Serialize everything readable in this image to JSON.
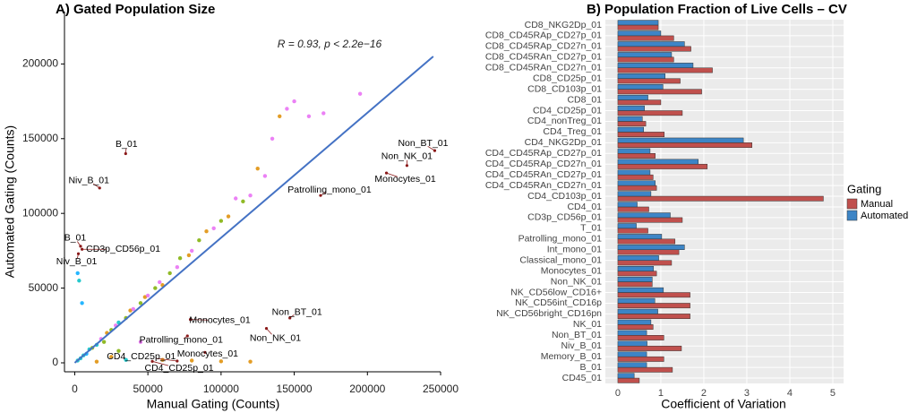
{
  "chart_data": [
    {
      "type": "scatter",
      "title": "A) Gated Population Size",
      "xlabel": "Manual Gating (Counts)",
      "ylabel": "Automated Gating (Counts)",
      "annotation": "R = 0.93, p < 2.2e−16",
      "xlim": [
        -7000,
        250000
      ],
      "ylim": [
        -6000,
        235000
      ],
      "xticks": [
        0,
        50000,
        100000,
        150000,
        200000,
        250000
      ],
      "yticks": [
        0,
        50000,
        100000,
        150000,
        200000
      ],
      "x": [
        2000,
        4000,
        6000,
        8000,
        10000,
        12000,
        15000,
        18000,
        20000,
        22000,
        25000,
        28000,
        30000,
        35000,
        38000,
        40000,
        45000,
        48000,
        50000,
        55000,
        58000,
        60000,
        65000,
        70000,
        72000,
        78000,
        80000,
        85000,
        90000,
        95000,
        100000,
        105000,
        110000,
        115000,
        120000,
        125000,
        130000,
        135000,
        140000,
        145000,
        150000,
        160000,
        170000,
        195000,
        60000,
        80000,
        100000,
        120000,
        30000,
        5000,
        3000,
        2000,
        45000,
        25000,
        15000,
        35000
      ],
      "y": [
        1500,
        3000,
        5000,
        6000,
        9000,
        10000,
        12000,
        16000,
        14000,
        20000,
        22000,
        25000,
        27000,
        30000,
        35000,
        36000,
        40000,
        44000,
        45000,
        50000,
        54000,
        52000,
        60000,
        64000,
        70000,
        72000,
        75000,
        82000,
        88000,
        90000,
        95000,
        98000,
        110000,
        108000,
        112000,
        130000,
        125000,
        150000,
        165000,
        170000,
        175000,
        165000,
        167000,
        180000,
        2000,
        1500,
        1000,
        800,
        8000,
        40000,
        55000,
        60000,
        14000,
        4000,
        800,
        2000
      ],
      "colors": [
        "#00bfc4",
        "#00bfc4",
        "#00bfc4",
        "#00a9ff",
        "#00bfc4",
        "#7cae00",
        "#00bfc4",
        "#e76bf3",
        "#7cae00",
        "#de8c00",
        "#7cae00",
        "#e76bf3",
        "#00bfc4",
        "#7cae00",
        "#de8c00",
        "#e76bf3",
        "#7cae00",
        "#de8c00",
        "#e76bf3",
        "#7cae00",
        "#e76bf3",
        "#de8c00",
        "#7cae00",
        "#e76bf3",
        "#7cae00",
        "#de8c00",
        "#e76bf3",
        "#7cae00",
        "#de8c00",
        "#e76bf3",
        "#7cae00",
        "#de8c00",
        "#e76bf3",
        "#7cae00",
        "#e76bf3",
        "#de8c00",
        "#e76bf3",
        "#e76bf3",
        "#de8c00",
        "#e76bf3",
        "#e76bf3",
        "#e76bf3",
        "#e76bf3",
        "#e76bf3",
        "#de8c00",
        "#de8c00",
        "#de8c00",
        "#de8c00",
        "#7cae00",
        "#00a9ff",
        "#00bfc4",
        "#00a9ff",
        "#e76bf3",
        "#de8c00",
        "#de8c00",
        "#00bfc4"
      ],
      "fit": {
        "x": [
          0,
          245000
        ],
        "y": [
          0,
          205000
        ],
        "color": "#4472c4"
      },
      "labels": [
        {
          "text": "B_01",
          "x": 34800,
          "y": 140000
        },
        {
          "text": "Non_BT_01",
          "x": 246000,
          "y": 142000
        },
        {
          "text": "Non_NK_01",
          "x": 227000,
          "y": 132000
        },
        {
          "text": "Monocytes_01",
          "x": 213000,
          "y": 127000
        },
        {
          "text": "Patrolling_mono_01",
          "x": 168000,
          "y": 112000
        },
        {
          "text": "Niv_B_01",
          "x": 17000,
          "y": 117000
        },
        {
          "text": "B_01",
          "x": 4000,
          "y": 78000
        },
        {
          "text": "CD3p_CD56p_01",
          "x": 5000,
          "y": 76000
        },
        {
          "text": "Niv_B_01",
          "x": 2500,
          "y": 73000
        },
        {
          "text": "Non_BT_01",
          "x": 147000,
          "y": 30000
        },
        {
          "text": "Non_NK_01",
          "x": 131000,
          "y": 23000
        },
        {
          "text": "Monocytes_01",
          "x": 79000,
          "y": 29000
        },
        {
          "text": "Patrolling_mono_01",
          "x": 77000,
          "y": 18000
        },
        {
          "text": "Monocytes_01",
          "x": 89000,
          "y": 7000
        },
        {
          "text": "CD4_CD25p_01",
          "x": 70000,
          "y": 1200
        },
        {
          "text": "CD4_CD25p_01",
          "x": 53000,
          "y": 1000
        }
      ]
    },
    {
      "type": "barh",
      "title": "B) Population Fraction of Live Cells – CV",
      "xlabel": "Coefficient of Variation",
      "legend_title": "Gating",
      "legend": "right",
      "grid": true,
      "xlim": [
        -0.29,
        5.25
      ],
      "xticks": [
        0,
        1,
        2,
        3,
        4,
        5
      ],
      "categories": [
        "CD8_NKG2Dp_01",
        "CD8_CD45RAp_CD27p_01",
        "CD8_CD45RAp_CD27n_01",
        "CD8_CD45RAn_CD27p_01",
        "CD8_CD45RAn_CD27n_01",
        "CD8_CD25p_01",
        "CD8_CD103p_01",
        "CD8_01",
        "CD4_CD25p_01",
        "CD4_nonTreg_01",
        "CD4_Treg_01",
        "CD4_NKG2Dp_01",
        "CD4_CD45RAp_CD27p_01",
        "CD4_CD45RAp_CD27n_01",
        "CD4_CD45RAn_CD27p_01",
        "CD4_CD45RAn_CD27n_01",
        "CD4_CD103p_01",
        "CD4_01",
        "CD3p_CD56p_01",
        "T_01",
        "Patrolling_mono_01",
        "Int_mono_01",
        "Classical_mono_01",
        "Monocytes_01",
        "Non_NK_01",
        "NK_CD56low_CD16+",
        "NK_CD56int_CD16p",
        "NK_CD56bright_CD16pn",
        "NK_01",
        "Non_BT_01",
        "Niv_B_01",
        "Memory_B_01",
        "B_01",
        "CD45_01"
      ],
      "series": [
        {
          "name": "Manual",
          "color": "#c0504d",
          "values": [
            0.94,
            1.3,
            1.7,
            1.3,
            2.2,
            1.45,
            1.95,
            1.0,
            1.5,
            0.65,
            1.08,
            3.12,
            0.87,
            2.08,
            0.82,
            0.9,
            4.78,
            0.72,
            1.5,
            0.7,
            1.33,
            1.42,
            1.25,
            0.9,
            0.8,
            1.68,
            1.68,
            1.68,
            0.82,
            1.07,
            1.48,
            1.07,
            1.27,
            0.5
          ]
        },
        {
          "name": "Automated",
          "color": "#3d85c6",
          "values": [
            0.94,
            1.0,
            1.55,
            1.25,
            1.75,
            1.1,
            1.05,
            0.7,
            0.62,
            0.57,
            0.6,
            2.92,
            0.75,
            1.87,
            0.75,
            0.87,
            0.77,
            0.45,
            1.22,
            0.43,
            1.02,
            1.55,
            0.95,
            0.83,
            0.8,
            1.06,
            0.86,
            0.93,
            0.77,
            0.67,
            0.68,
            0.67,
            0.67,
            0.38
          ]
        }
      ]
    }
  ]
}
